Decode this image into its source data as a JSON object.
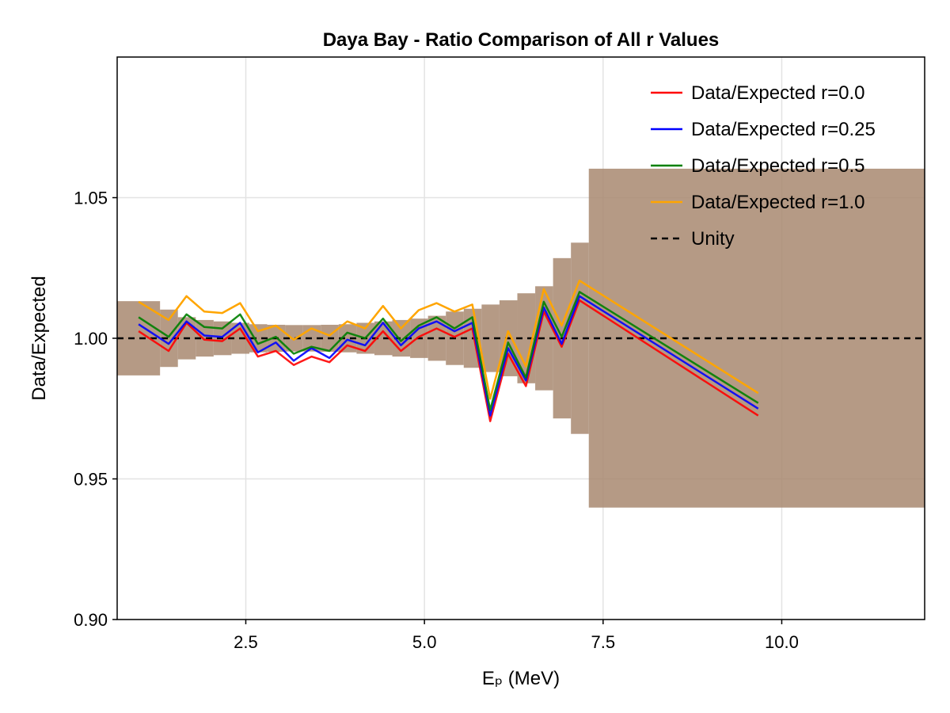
{
  "chart_data": {
    "type": "line",
    "title": "Daya Bay - Ratio Comparison of All r Values",
    "xlabel": "Eₚ (MeV)",
    "ylabel": "Data/Expected",
    "xlim": [
      0.7,
      12.0
    ],
    "ylim": [
      0.9,
      1.1
    ],
    "xticks": [
      2.5,
      5.0,
      7.5,
      10.0
    ],
    "xtick_labels": [
      "2.5",
      "5.0",
      "7.5",
      "10.0"
    ],
    "yticks": [
      0.9,
      0.95,
      1.0,
      1.05
    ],
    "ytick_labels": [
      "0.90",
      "0.95",
      "1.00",
      "1.05"
    ],
    "grid": true,
    "legend_position": "top-right",
    "x": [
      1.0,
      1.42,
      1.67,
      1.92,
      2.17,
      2.42,
      2.67,
      2.92,
      3.17,
      3.42,
      3.67,
      3.92,
      4.17,
      4.42,
      4.67,
      4.92,
      5.17,
      5.42,
      5.67,
      5.92,
      6.17,
      6.42,
      6.67,
      6.92,
      7.17,
      9.67
    ],
    "series": [
      {
        "name": "Data/Expected r=0.0",
        "color": "#ff0000",
        "values": [
          1.0025,
          0.9955,
          1.0055,
          0.9995,
          0.999,
          1.0035,
          0.9935,
          0.9955,
          0.9905,
          0.9935,
          0.9915,
          0.9975,
          0.9955,
          1.0025,
          0.9955,
          1.0005,
          1.0035,
          1.0005,
          1.0035,
          0.9705,
          0.9945,
          0.983,
          1.0095,
          0.997,
          1.0135,
          0.9725
        ]
      },
      {
        "name": "Data/Expected r=0.25",
        "color": "#0000ff",
        "values": [
          1.005,
          0.998,
          1.006,
          1.001,
          1.0005,
          1.0055,
          0.995,
          0.9985,
          0.992,
          0.9965,
          0.993,
          0.9995,
          0.9975,
          1.0055,
          0.9975,
          1.0035,
          1.006,
          1.0025,
          1.0055,
          0.9725,
          0.9965,
          0.985,
          1.011,
          0.998,
          1.015,
          0.975
        ]
      },
      {
        "name": "Data/Expected r=0.5",
        "color": "#008000",
        "values": [
          1.0075,
          1.0005,
          1.0085,
          1.004,
          1.0035,
          1.0085,
          0.998,
          1.0005,
          0.9945,
          0.997,
          0.9955,
          1.002,
          1.0,
          1.007,
          0.999,
          1.0045,
          1.0075,
          1.0035,
          1.0075,
          0.9745,
          0.9985,
          0.986,
          1.013,
          1.0005,
          1.0165,
          0.977
        ]
      },
      {
        "name": "Data/Expected r=1.0",
        "color": "#ffa500",
        "values": [
          1.013,
          1.0065,
          1.015,
          1.0095,
          1.009,
          1.0125,
          1.0025,
          1.0045,
          0.9995,
          1.0035,
          1.001,
          1.006,
          1.0035,
          1.0115,
          1.0035,
          1.01,
          1.0125,
          1.0095,
          1.012,
          0.9785,
          1.0025,
          0.99,
          1.0175,
          1.0045,
          1.0205,
          0.9805
        ]
      }
    ],
    "reference_line": {
      "name": "Unity",
      "value": 1.0,
      "style": "dashed",
      "color": "#000000"
    },
    "uncertainty_band": {
      "color": "#a88870",
      "bins": [
        {
          "x0": 0.7,
          "x1": 1.3,
          "lo": 0.9868,
          "hi": 1.0132
        },
        {
          "x0": 1.3,
          "x1": 1.55,
          "lo": 0.9898,
          "hi": 1.0102
        },
        {
          "x0": 1.55,
          "x1": 1.8,
          "lo": 0.9925,
          "hi": 1.0075
        },
        {
          "x0": 1.8,
          "x1": 2.05,
          "lo": 0.9935,
          "hi": 1.0065
        },
        {
          "x0": 2.05,
          "x1": 2.3,
          "lo": 0.994,
          "hi": 1.006
        },
        {
          "x0": 2.3,
          "x1": 2.55,
          "lo": 0.9945,
          "hi": 1.0055
        },
        {
          "x0": 2.55,
          "x1": 2.8,
          "lo": 0.995,
          "hi": 1.005
        },
        {
          "x0": 2.8,
          "x1": 3.05,
          "lo": 0.9952,
          "hi": 1.0048
        },
        {
          "x0": 3.05,
          "x1": 3.3,
          "lo": 0.9953,
          "hi": 1.0047
        },
        {
          "x0": 3.3,
          "x1": 3.55,
          "lo": 0.9953,
          "hi": 1.0047
        },
        {
          "x0": 3.55,
          "x1": 3.8,
          "lo": 0.9952,
          "hi": 1.0048
        },
        {
          "x0": 3.8,
          "x1": 4.05,
          "lo": 0.995,
          "hi": 1.005
        },
        {
          "x0": 4.05,
          "x1": 4.3,
          "lo": 0.9945,
          "hi": 1.0055
        },
        {
          "x0": 4.3,
          "x1": 4.55,
          "lo": 0.994,
          "hi": 1.006
        },
        {
          "x0": 4.55,
          "x1": 4.8,
          "lo": 0.9935,
          "hi": 1.0065
        },
        {
          "x0": 4.8,
          "x1": 5.05,
          "lo": 0.993,
          "hi": 1.007
        },
        {
          "x0": 5.05,
          "x1": 5.3,
          "lo": 0.992,
          "hi": 1.008
        },
        {
          "x0": 5.3,
          "x1": 5.55,
          "lo": 0.9905,
          "hi": 1.0095
        },
        {
          "x0": 5.55,
          "x1": 5.8,
          "lo": 0.9895,
          "hi": 1.0105
        },
        {
          "x0": 5.8,
          "x1": 6.05,
          "lo": 0.988,
          "hi": 1.012
        },
        {
          "x0": 6.05,
          "x1": 6.3,
          "lo": 0.9865,
          "hi": 1.0135
        },
        {
          "x0": 6.3,
          "x1": 6.55,
          "lo": 0.984,
          "hi": 1.016
        },
        {
          "x0": 6.55,
          "x1": 6.8,
          "lo": 0.9815,
          "hi": 1.0185
        },
        {
          "x0": 6.8,
          "x1": 7.05,
          "lo": 0.9715,
          "hi": 1.0285
        },
        {
          "x0": 7.05,
          "x1": 7.3,
          "lo": 0.966,
          "hi": 1.034
        },
        {
          "x0": 7.3,
          "x1": 12.0,
          "lo": 0.9398,
          "hi": 1.0603
        }
      ]
    }
  }
}
